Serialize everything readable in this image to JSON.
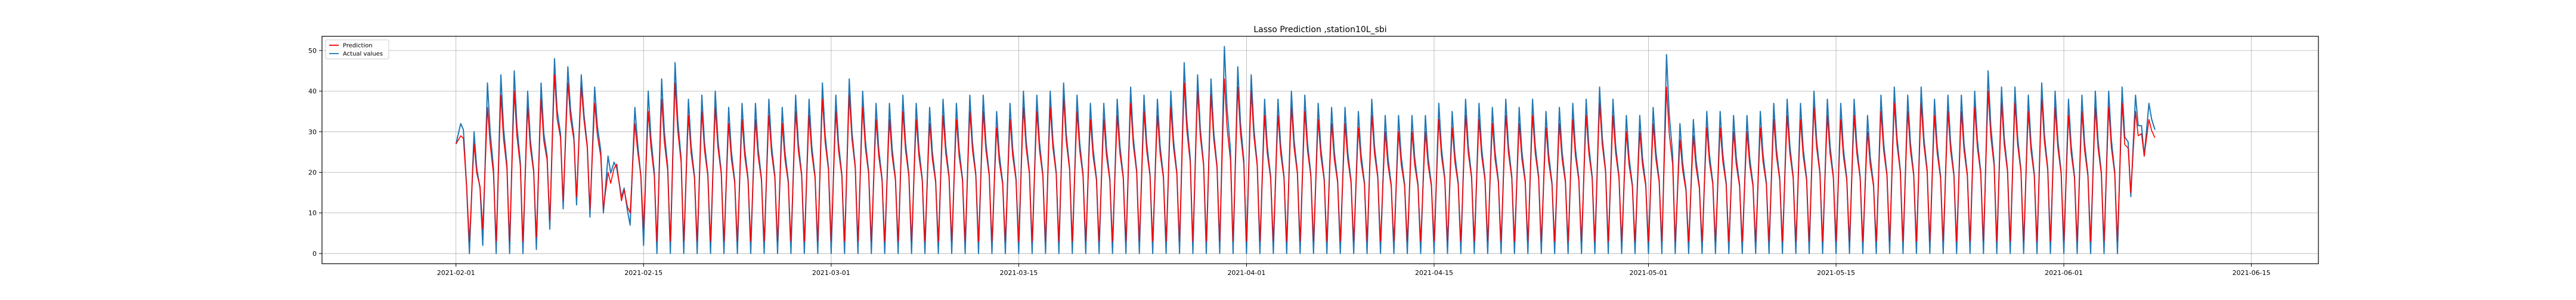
{
  "chart_data": {
    "type": "line",
    "title": "Lasso Prediction ,station10L_sbi",
    "xlabel": "",
    "ylabel": "",
    "x_range": [
      "2021-01-22",
      "2021-06-20"
    ],
    "data_x_range": [
      "2021-02-01",
      "2021-06-08"
    ],
    "ylim": [
      -2.5,
      53.5
    ],
    "y_ticks": [
      0,
      10,
      20,
      30,
      40,
      50
    ],
    "x_ticks": [
      "2021-02-01",
      "2021-02-15",
      "2021-03-01",
      "2021-03-15",
      "2021-04-01",
      "2021-04-15",
      "2021-05-01",
      "2021-05-15",
      "2021-06-01",
      "2021-06-15"
    ],
    "grid": true,
    "legend_position": "top-left",
    "sampling": "approx. 4 points per day (daily cycle)",
    "series": [
      {
        "name": "Prediction",
        "color": "#ff0000",
        "daily_max": [
          29,
          27,
          36,
          39,
          40,
          36,
          38,
          44,
          42,
          41,
          37,
          20,
          13,
          32,
          35,
          38,
          42,
          34,
          35,
          36,
          32,
          33,
          33,
          34,
          32,
          35,
          34,
          38,
          35,
          39,
          36,
          33,
          33,
          35,
          33,
          32,
          34,
          33,
          35,
          35,
          31,
          33,
          36,
          35,
          36,
          38,
          35,
          33,
          33,
          34,
          37,
          35,
          34,
          36,
          42,
          40,
          39,
          43,
          41,
          40,
          34,
          34,
          36,
          35,
          33,
          32,
          32,
          31,
          34,
          30,
          30,
          30,
          30,
          33,
          31,
          34,
          33,
          32,
          34,
          32,
          34,
          31,
          32,
          33,
          34,
          37,
          34,
          30,
          30,
          32,
          41,
          28,
          29,
          31,
          31,
          30,
          30,
          31,
          33,
          34,
          33,
          36,
          34,
          33,
          34,
          30,
          35,
          37,
          35,
          37,
          34,
          35,
          35,
          36,
          40,
          37,
          37,
          35,
          38,
          36,
          34,
          35,
          36,
          36,
          37,
          35,
          33
        ],
        "daily_min": [
          27,
          3,
          6,
          3,
          3,
          3,
          4,
          8,
          13,
          14,
          11,
          11,
          22,
          10,
          6,
          3,
          3,
          3,
          3,
          3,
          3,
          3,
          3,
          3,
          3,
          3,
          3,
          3,
          3,
          3,
          3,
          3,
          3,
          3,
          3,
          3,
          3,
          3,
          3,
          3,
          3,
          3,
          3,
          3,
          3,
          3,
          3,
          3,
          3,
          3,
          3,
          3,
          3,
          3,
          3,
          3,
          3,
          3,
          3,
          3,
          3,
          3,
          3,
          3,
          3,
          3,
          3,
          3,
          3,
          3,
          3,
          3,
          3,
          3,
          3,
          3,
          3,
          3,
          3,
          3,
          3,
          3,
          3,
          3,
          3,
          3,
          3,
          3,
          3,
          3,
          3,
          3,
          3,
          3,
          3,
          3,
          3,
          3,
          3,
          3,
          3,
          3,
          3,
          3,
          3,
          3,
          3,
          3,
          3,
          3,
          3,
          3,
          3,
          3,
          3,
          3,
          3,
          3,
          3,
          3,
          3,
          3,
          3,
          3,
          3,
          15,
          24
        ]
      },
      {
        "name": "Actual values",
        "color": "#1f77b4",
        "daily_max": [
          32,
          30,
          42,
          44,
          45,
          40,
          42,
          48,
          46,
          44,
          41,
          24,
          14,
          36,
          40,
          43,
          47,
          38,
          39,
          40,
          36,
          37,
          37,
          38,
          36,
          39,
          38,
          42,
          39,
          43,
          40,
          37,
          37,
          39,
          37,
          36,
          38,
          37,
          39,
          39,
          35,
          37,
          40,
          39,
          40,
          42,
          39,
          37,
          37,
          38,
          41,
          39,
          38,
          40,
          47,
          44,
          43,
          51,
          46,
          44,
          38,
          38,
          40,
          39,
          37,
          36,
          36,
          35,
          38,
          34,
          34,
          34,
          34,
          37,
          35,
          38,
          37,
          36,
          38,
          36,
          38,
          35,
          36,
          37,
          38,
          41,
          38,
          34,
          34,
          36,
          49,
          32,
          33,
          35,
          35,
          34,
          34,
          35,
          37,
          38,
          37,
          40,
          38,
          37,
          38,
          34,
          39,
          41,
          39,
          41,
          38,
          39,
          39,
          40,
          45,
          41,
          41,
          39,
          42,
          40,
          38,
          39,
          40,
          40,
          41,
          39,
          37
        ],
        "daily_min": [
          27,
          0,
          2,
          0,
          0,
          0,
          1,
          6,
          11,
          12,
          9,
          10,
          21,
          7,
          2,
          0,
          0,
          0,
          0,
          0,
          0,
          0,
          0,
          0,
          0,
          0,
          0,
          0,
          0,
          0,
          0,
          0,
          0,
          0,
          0,
          0,
          0,
          0,
          0,
          0,
          0,
          0,
          0,
          0,
          0,
          0,
          0,
          0,
          0,
          0,
          0,
          0,
          0,
          0,
          0,
          0,
          0,
          0,
          0,
          0,
          0,
          0,
          0,
          0,
          0,
          0,
          0,
          0,
          0,
          0,
          0,
          0,
          0,
          0,
          0,
          0,
          0,
          0,
          0,
          0,
          0,
          0,
          0,
          0,
          0,
          0,
          0,
          0,
          0,
          0,
          0,
          0,
          0,
          0,
          0,
          0,
          0,
          0,
          0,
          0,
          0,
          0,
          0,
          0,
          0,
          0,
          0,
          0,
          0,
          0,
          0,
          0,
          0,
          0,
          0,
          0,
          0,
          0,
          0,
          0,
          0,
          0,
          0,
          0,
          0,
          14,
          24
        ]
      }
    ]
  }
}
